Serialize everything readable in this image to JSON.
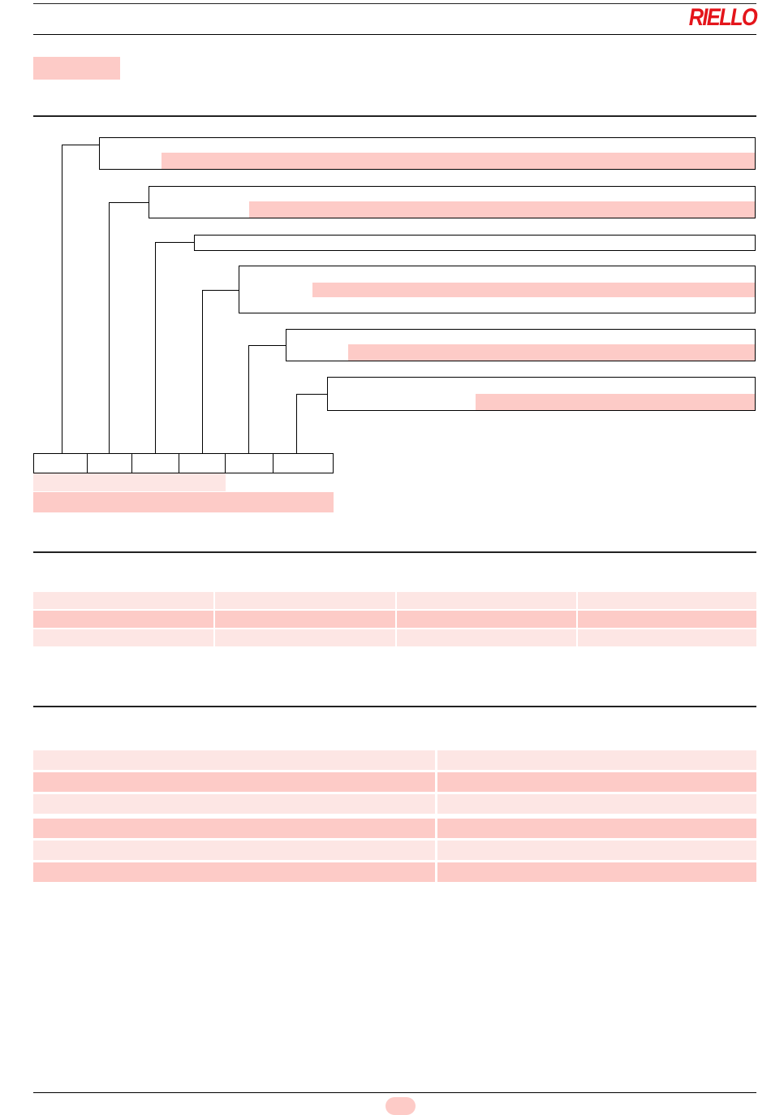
{
  "header": {
    "brand": "RIELLO",
    "colors": {
      "brand_red": "#e4151b",
      "highlight_dark": "#fdcbc7",
      "highlight_light": "#fde6e4",
      "rule": "#000000"
    }
  },
  "designation_diagram": {
    "boxes": 6,
    "code_cells": 6
  },
  "table1": {
    "columns": 4,
    "rows": 3
  },
  "table2": {
    "columns": 2,
    "rows": 6
  }
}
